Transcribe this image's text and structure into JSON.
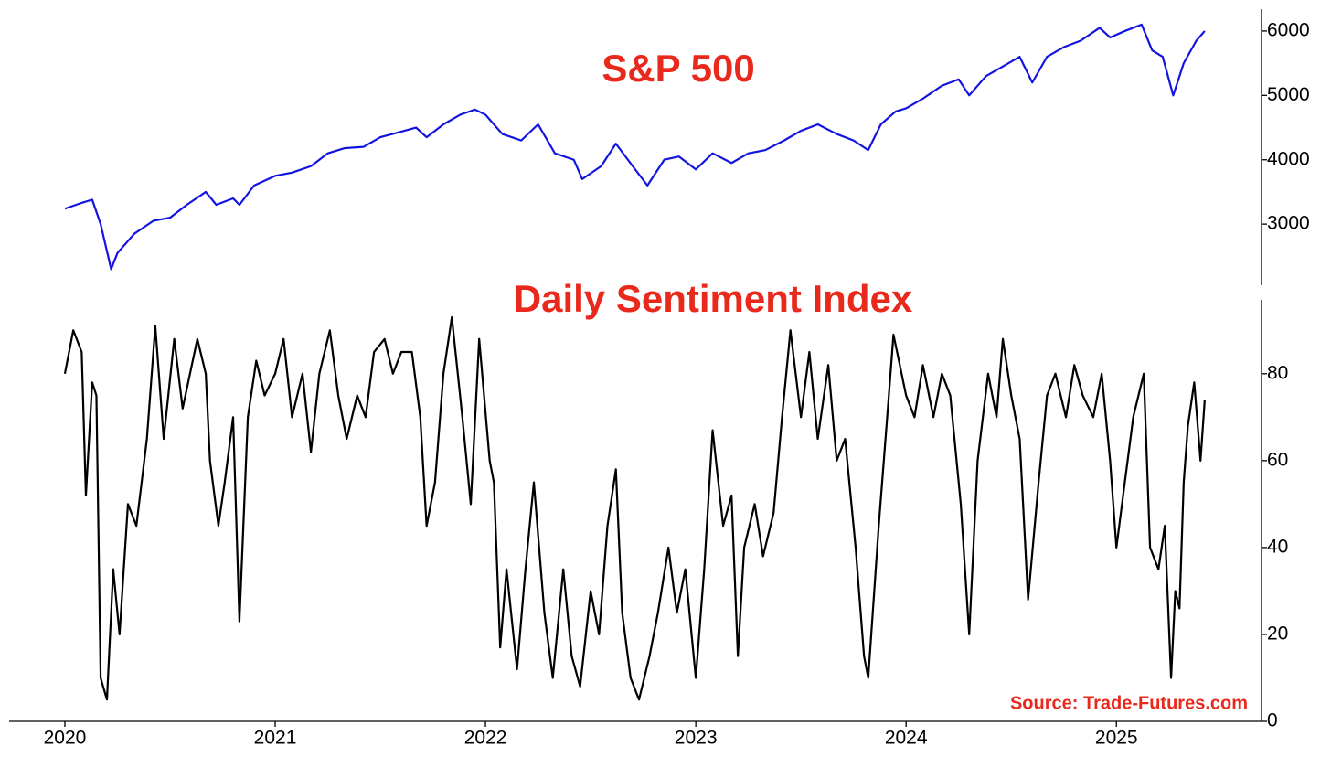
{
  "chart_data": [
    {
      "type": "line",
      "title": "S&P 500",
      "x": [
        2020.0,
        2020.08,
        2020.13,
        2020.17,
        2020.22,
        2020.25,
        2020.33,
        2020.42,
        2020.5,
        2020.58,
        2020.67,
        2020.72,
        2020.8,
        2020.83,
        2020.9,
        2021.0,
        2021.08,
        2021.17,
        2021.25,
        2021.33,
        2021.42,
        2021.5,
        2021.58,
        2021.67,
        2021.72,
        2021.8,
        2021.88,
        2021.95,
        2022.0,
        2022.08,
        2022.17,
        2022.25,
        2022.33,
        2022.42,
        2022.46,
        2022.55,
        2022.62,
        2022.7,
        2022.77,
        2022.85,
        2022.92,
        2023.0,
        2023.08,
        2023.17,
        2023.25,
        2023.33,
        2023.42,
        2023.5,
        2023.58,
        2023.67,
        2023.75,
        2023.82,
        2023.88,
        2023.95,
        2024.0,
        2024.08,
        2024.17,
        2024.25,
        2024.3,
        2024.38,
        2024.46,
        2024.54,
        2024.6,
        2024.67,
        2024.75,
        2024.83,
        2024.92,
        2024.97,
        2025.04,
        2025.12,
        2025.17,
        2025.22,
        2025.27,
        2025.32,
        2025.38,
        2025.42
      ],
      "series": [
        {
          "name": "S&P 500",
          "color": "#1414e0",
          "values": [
            3240,
            3330,
            3380,
            3000,
            2300,
            2550,
            2850,
            3050,
            3100,
            3300,
            3500,
            3300,
            3400,
            3300,
            3600,
            3750,
            3800,
            3900,
            4100,
            4180,
            4200,
            4350,
            4420,
            4500,
            4350,
            4550,
            4700,
            4780,
            4700,
            4400,
            4300,
            4550,
            4100,
            4000,
            3700,
            3900,
            4250,
            3900,
            3600,
            4000,
            4050,
            3850,
            4100,
            3950,
            4100,
            4150,
            4300,
            4450,
            4550,
            4400,
            4300,
            4150,
            4550,
            4750,
            4800,
            4950,
            5150,
            5250,
            5000,
            5300,
            5450,
            5600,
            5200,
            5600,
            5750,
            5850,
            6050,
            5900,
            6000,
            6100,
            5700,
            5600,
            5000,
            5500,
            5850,
            6000
          ]
        }
      ],
      "xlim": [
        2019.735,
        2025.69
      ],
      "ylim": [
        2050,
        6340
      ],
      "yticks": [
        3000,
        4000,
        5000,
        6000
      ]
    },
    {
      "type": "line",
      "title": "Daily Sentiment Index",
      "x": [
        2020.0,
        2020.04,
        2020.08,
        2020.1,
        2020.13,
        2020.15,
        2020.17,
        2020.2,
        2020.23,
        2020.26,
        2020.3,
        2020.34,
        2020.39,
        2020.43,
        2020.47,
        2020.52,
        2020.56,
        2020.63,
        2020.67,
        2020.69,
        2020.73,
        2020.76,
        2020.8,
        2020.83,
        2020.87,
        2020.91,
        2020.95,
        2021.0,
        2021.04,
        2021.08,
        2021.13,
        2021.17,
        2021.21,
        2021.26,
        2021.3,
        2021.34,
        2021.39,
        2021.43,
        2021.47,
        2021.52,
        2021.56,
        2021.6,
        2021.65,
        2021.69,
        2021.72,
        2021.76,
        2021.8,
        2021.84,
        2021.89,
        2021.93,
        2021.97,
        2022.02,
        2022.04,
        2022.07,
        2022.1,
        2022.15,
        2022.19,
        2022.23,
        2022.28,
        2022.32,
        2022.37,
        2022.41,
        2022.45,
        2022.5,
        2022.54,
        2022.58,
        2022.62,
        2022.65,
        2022.69,
        2022.73,
        2022.78,
        2022.82,
        2022.87,
        2022.91,
        2022.95,
        2023.0,
        2023.04,
        2023.08,
        2023.13,
        2023.17,
        2023.2,
        2023.23,
        2023.28,
        2023.32,
        2023.37,
        2023.41,
        2023.45,
        2023.5,
        2023.54,
        2023.58,
        2023.63,
        2023.67,
        2023.71,
        2023.76,
        2023.8,
        2023.82,
        2023.87,
        2023.91,
        2023.94,
        2024.0,
        2024.04,
        2024.08,
        2024.13,
        2024.17,
        2024.21,
        2024.26,
        2024.3,
        2024.34,
        2024.39,
        2024.43,
        2024.46,
        2024.5,
        2024.54,
        2024.58,
        2024.63,
        2024.67,
        2024.71,
        2024.76,
        2024.8,
        2024.84,
        2024.89,
        2024.93,
        2024.97,
        2025.0,
        2025.04,
        2025.08,
        2025.13,
        2025.16,
        2025.2,
        2025.23,
        2025.26,
        2025.28,
        2025.3,
        2025.32,
        2025.34,
        2025.37,
        2025.4,
        2025.42
      ],
      "series": [
        {
          "name": "Daily Sentiment Index",
          "color": "#000000",
          "values": [
            80,
            90,
            85,
            52,
            78,
            75,
            10,
            5,
            35,
            20,
            50,
            45,
            65,
            91,
            65,
            88,
            72,
            88,
            80,
            60,
            45,
            55,
            70,
            23,
            70,
            83,
            75,
            80,
            88,
            70,
            80,
            62,
            80,
            90,
            75,
            65,
            75,
            70,
            85,
            88,
            80,
            85,
            85,
            70,
            45,
            55,
            80,
            93,
            70,
            50,
            88,
            60,
            55,
            17,
            35,
            12,
            35,
            55,
            25,
            10,
            35,
            15,
            8,
            30,
            20,
            45,
            58,
            25,
            10,
            5,
            15,
            25,
            40,
            25,
            35,
            10,
            35,
            67,
            45,
            52,
            15,
            40,
            50,
            38,
            48,
            70,
            90,
            70,
            85,
            65,
            82,
            60,
            65,
            40,
            15,
            10,
            45,
            70,
            89,
            75,
            70,
            82,
            70,
            80,
            75,
            50,
            20,
            60,
            80,
            70,
            88,
            75,
            65,
            28,
            55,
            75,
            80,
            70,
            82,
            75,
            70,
            80,
            60,
            40,
            55,
            70,
            80,
            40,
            35,
            45,
            10,
            30,
            26,
            55,
            68,
            78,
            60,
            74
          ]
        }
      ],
      "xlim": [
        2019.735,
        2025.69
      ],
      "ylim": [
        0,
        97
      ],
      "xticks": [
        2020,
        2021,
        2022,
        2023,
        2024,
        2025
      ],
      "yticks": [
        0,
        20,
        40,
        60,
        80
      ],
      "annotation": "Source: Trade-Futures.com"
    }
  ]
}
